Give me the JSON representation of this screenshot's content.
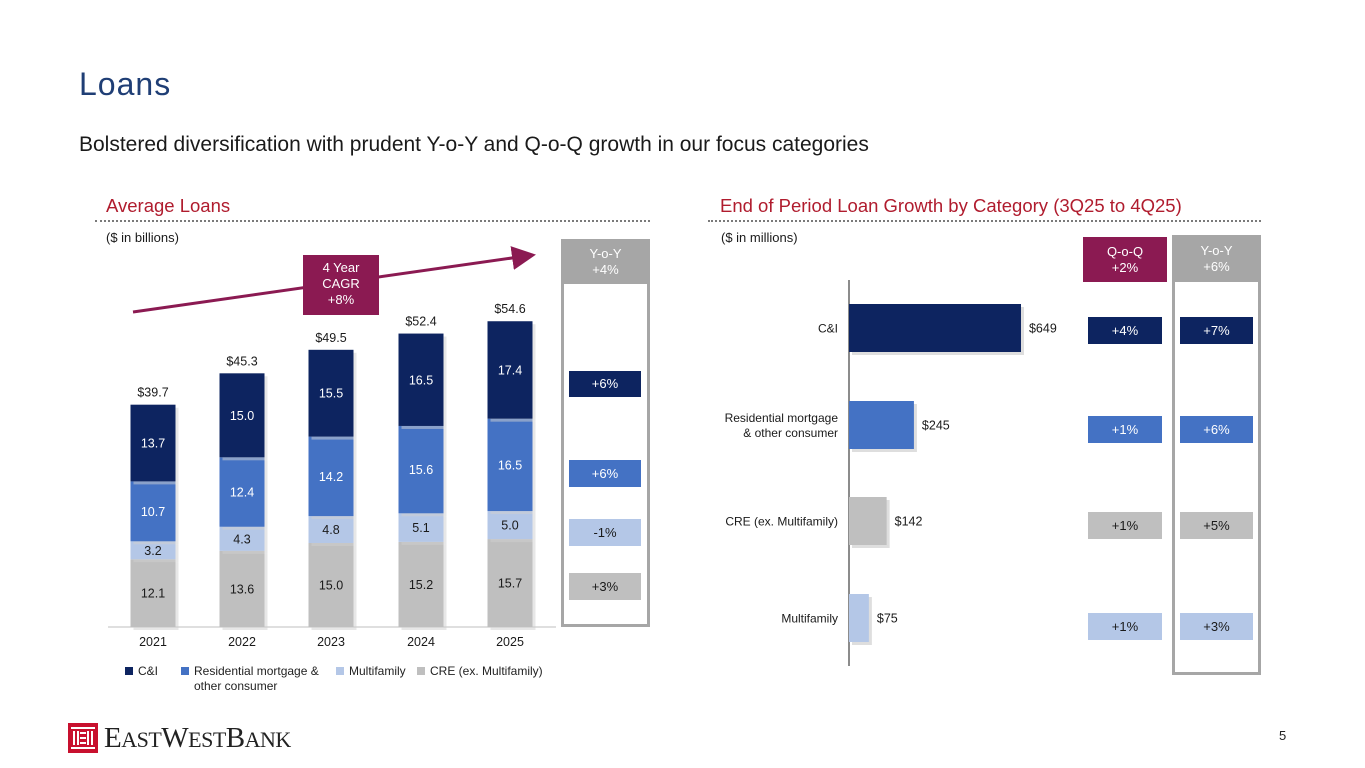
{
  "page": {
    "title": "Loans",
    "subtitle": "Bolstered diversification with prudent Y-o-Y and Q-o-Q growth in our focus categories",
    "page_number": "5",
    "brand": "EASTWESTBANK"
  },
  "left": {
    "title": "Average Loans",
    "unit": "($ in billions)",
    "cagr": {
      "line1": "4 Year",
      "line2": "CAGR",
      "line3": "+8%"
    },
    "yoy_header": {
      "label": "Y-o-Y",
      "value": "+4%"
    },
    "yoy_pills": [
      "+6%",
      "+6%",
      "-1%",
      "+3%"
    ]
  },
  "right": {
    "title": "End of Period Loan Growth by Category (3Q25 to 4Q25)",
    "unit": "($ in millions)",
    "qoq_header": {
      "label": "Q-o-Q",
      "value": "+2%"
    },
    "yoy_header": {
      "label": "Y-o-Y",
      "value": "+6%"
    },
    "qoq_pills": [
      "+4%",
      "+1%",
      "+1%",
      "+1%"
    ],
    "yoy_pills": [
      "+7%",
      "+6%",
      "+5%",
      "+3%"
    ]
  },
  "colors": {
    "ci": "#0d2460",
    "resi": "#4472c4",
    "multi": "#b4c7e7",
    "cre": "#bfbfbf",
    "accent": "#8b1a52",
    "title": "#1f3e75",
    "red": "#b01c2e"
  },
  "chart_data": [
    {
      "type": "bar",
      "stacked": true,
      "title": "Average Loans",
      "ylabel": "($ in billions)",
      "categories": [
        "2021",
        "2022",
        "2023",
        "2024",
        "2025"
      ],
      "series": [
        {
          "name": "CRE (ex. Multifamily)",
          "values": [
            12.1,
            13.6,
            15.0,
            15.2,
            15.7
          ]
        },
        {
          "name": "Multifamily",
          "values": [
            3.2,
            4.3,
            4.8,
            5.1,
            5.0
          ]
        },
        {
          "name": "Residential mortgage & other consumer",
          "values": [
            10.7,
            12.4,
            14.2,
            15.6,
            16.5
          ]
        },
        {
          "name": "C&I",
          "values": [
            13.7,
            15.0,
            15.5,
            16.5,
            17.4
          ]
        }
      ],
      "series_labels": [
        [
          "12.1",
          "13.6",
          "15.0",
          "15.2",
          "15.7"
        ],
        [
          "3.2",
          "4.3",
          "4.8",
          "5.1",
          "5.0"
        ],
        [
          "10.7",
          "12.4",
          "14.2",
          "15.6",
          "16.5"
        ],
        [
          "13.7",
          "15.0",
          "15.5",
          "16.5",
          "17.4"
        ]
      ],
      "totals": [
        "$39.7",
        "$45.3",
        "$49.5",
        "$52.4",
        "$54.6"
      ],
      "legend": [
        "C&I",
        "Residential mortgage & other consumer",
        "Multifamily",
        "CRE (ex. Multifamily)"
      ]
    },
    {
      "type": "bar",
      "orientation": "horizontal",
      "title": "End of Period Loan Growth by Category (3Q25 to 4Q25)",
      "xlabel": "($ in millions)",
      "categories": [
        "C&I",
        "Residential mortgage & other consumer",
        "CRE (ex. Multifamily)",
        "Multifamily"
      ],
      "values": [
        649,
        245,
        142,
        75
      ],
      "value_labels": [
        "$649",
        "$245",
        "$142",
        "$75"
      ]
    }
  ]
}
